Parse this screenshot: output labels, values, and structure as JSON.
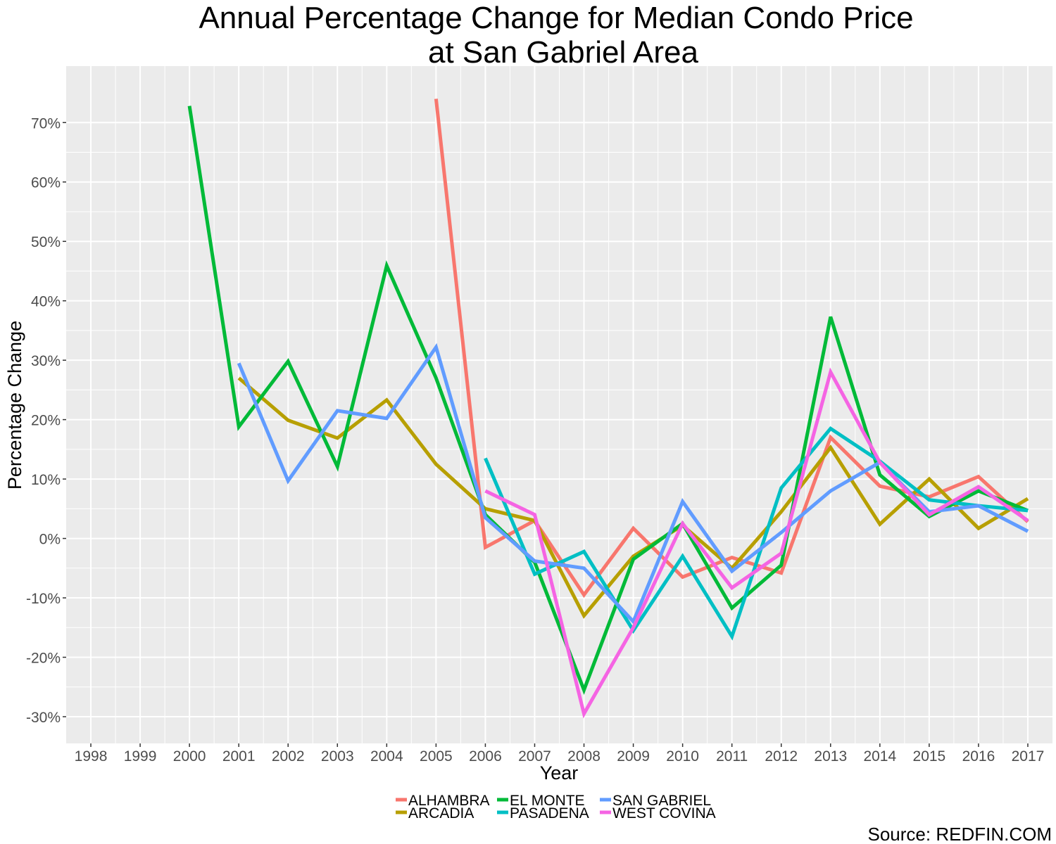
{
  "chart_data": {
    "type": "line",
    "title_line1": "Annual Percentage Change for Median Condo Price",
    "title_line2": "at San Gabriel Area",
    "xlabel": "Year",
    "ylabel": "Percentage Change",
    "caption": "Source: REDFIN.COM",
    "x": [
      1998,
      1999,
      2000,
      2001,
      2002,
      2003,
      2004,
      2005,
      2006,
      2007,
      2008,
      2009,
      2010,
      2011,
      2012,
      2013,
      2014,
      2015,
      2016,
      2017
    ],
    "x_tick_labels": [
      "1998",
      "1999",
      "2000",
      "2001",
      "2002",
      "2003",
      "2004",
      "2005",
      "2006",
      "2007",
      "2008",
      "2009",
      "2010",
      "2011",
      "2012",
      "2013",
      "2014",
      "2015",
      "2016",
      "2017"
    ],
    "xlim": [
      1997.5,
      2017.5
    ],
    "ylim": [
      -0.345,
      0.795
    ],
    "y_ticks": [
      -0.3,
      -0.2,
      -0.1,
      0,
      0.1,
      0.2,
      0.3,
      0.4,
      0.5,
      0.6,
      0.7
    ],
    "y_tick_labels": [
      "-30%",
      "-20%",
      "-10%",
      "0%",
      "10%",
      "20%",
      "30%",
      "40%",
      "50%",
      "60%",
      "70%"
    ],
    "grid": true,
    "legend_position": "bottom",
    "series": [
      {
        "name": "ALHAMBRA",
        "color": "#F8766D",
        "x": [
          2005,
          2006,
          2007,
          2008,
          2009,
          2010,
          2011,
          2012,
          2013,
          2014,
          2015,
          2016,
          2017
        ],
        "values": [
          0.74,
          -0.015,
          0.03,
          -0.095,
          0.017,
          -0.065,
          -0.032,
          -0.058,
          0.17,
          0.088,
          0.07,
          0.104,
          0.028
        ]
      },
      {
        "name": "ARCADIA",
        "color": "#B79F00",
        "x": [
          2001,
          2002,
          2003,
          2004,
          2005,
          2006,
          2007,
          2008,
          2009,
          2010,
          2011,
          2012,
          2013,
          2014,
          2015,
          2016,
          2017
        ],
        "values": [
          0.27,
          0.199,
          0.169,
          0.233,
          0.125,
          0.05,
          0.03,
          -0.13,
          -0.03,
          0.022,
          -0.05,
          0.045,
          0.153,
          0.024,
          0.1,
          0.017,
          0.067
        ]
      },
      {
        "name": "EL MONTE",
        "color": "#00BA38",
        "x": [
          2000,
          2001,
          2002,
          2003,
          2004,
          2005,
          2006,
          2007,
          2008,
          2009,
          2010,
          2011,
          2012,
          2013,
          2014,
          2015,
          2016,
          2017
        ],
        "values": [
          0.728,
          0.188,
          0.298,
          0.121,
          0.459,
          0.27,
          0.04,
          -0.04,
          -0.255,
          -0.035,
          0.025,
          -0.117,
          -0.045,
          0.373,
          0.107,
          0.037,
          0.08,
          0.047
        ]
      },
      {
        "name": "PASADENA",
        "color": "#00BFC4",
        "x": [
          2006,
          2007,
          2008,
          2009,
          2010,
          2011,
          2012,
          2013,
          2014,
          2015,
          2016,
          2017
        ],
        "values": [
          0.135,
          -0.06,
          -0.022,
          -0.155,
          -0.03,
          -0.165,
          0.085,
          0.185,
          0.13,
          0.065,
          0.055,
          0.047
        ]
      },
      {
        "name": "SAN GABRIEL",
        "color": "#619CFF",
        "x": [
          2001,
          2002,
          2003,
          2004,
          2005,
          2006,
          2007,
          2008,
          2009,
          2010,
          2011,
          2012,
          2013,
          2014,
          2015,
          2016,
          2017
        ],
        "values": [
          0.295,
          0.097,
          0.215,
          0.202,
          0.322,
          0.035,
          -0.038,
          -0.05,
          -0.14,
          0.062,
          -0.055,
          0.01,
          0.08,
          0.128,
          0.045,
          0.055,
          0.012
        ]
      },
      {
        "name": "WEST COVINA",
        "color": "#F564E3",
        "x": [
          2006,
          2007,
          2008,
          2009,
          2010,
          2011,
          2012,
          2013,
          2014,
          2015,
          2016,
          2017
        ],
        "values": [
          0.08,
          0.04,
          -0.295,
          -0.15,
          0.025,
          -0.083,
          -0.025,
          0.28,
          0.128,
          0.04,
          0.087,
          0.03
        ]
      }
    ]
  }
}
